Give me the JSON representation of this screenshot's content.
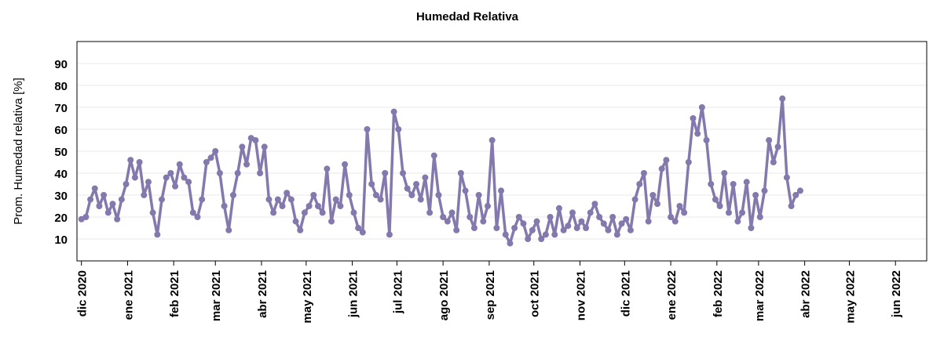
{
  "chart_data": {
    "type": "line",
    "title": "Humedad Relativa",
    "y_label": "Prom. Humedad relativa [%]",
    "x": [
      0,
      3,
      6,
      9,
      12,
      15,
      18,
      21,
      24,
      27,
      30,
      33,
      36,
      39,
      42,
      45,
      48,
      51,
      54,
      57,
      60,
      63,
      66,
      69,
      72,
      75,
      78,
      81,
      84,
      87,
      90,
      93,
      96,
      99,
      102,
      105,
      108,
      111,
      114,
      117,
      120,
      123,
      126,
      129,
      132,
      135,
      138,
      141,
      144,
      147,
      150,
      153,
      156,
      159,
      162,
      165,
      168,
      171,
      174,
      177,
      180,
      183,
      186,
      189,
      192,
      195,
      198,
      201,
      204,
      207,
      210,
      213,
      216,
      219,
      222,
      225,
      228,
      231,
      234,
      237,
      240,
      243,
      246,
      249,
      252,
      255,
      258,
      261,
      264,
      267,
      270,
      273,
      276,
      279,
      282,
      285,
      288,
      291,
      294,
      297,
      300,
      303,
      306,
      309,
      312,
      315,
      318,
      321,
      324,
      327,
      330,
      333,
      336,
      339,
      342,
      345,
      348,
      351,
      354,
      357,
      360,
      363,
      366,
      369,
      372,
      375,
      378,
      381,
      384,
      387,
      390,
      393,
      396,
      399,
      402,
      405,
      408,
      411,
      414,
      417,
      420,
      423,
      426,
      429,
      432,
      435,
      438,
      441,
      444,
      447,
      450,
      453,
      456,
      459,
      462,
      465,
      468,
      471,
      474,
      477,
      480,
      483
    ],
    "series": [
      {
        "color": "#8479ad",
        "values": [
          19,
          20,
          28,
          33,
          25,
          30,
          22,
          26,
          19,
          28,
          35,
          46,
          38,
          45,
          30,
          36,
          22,
          12,
          28,
          38,
          40,
          34,
          44,
          38,
          36,
          22,
          20,
          28,
          45,
          47,
          50,
          40,
          25,
          14,
          30,
          40,
          52,
          44,
          56,
          55,
          40,
          52,
          28,
          22,
          28,
          25,
          31,
          28,
          18,
          14,
          22,
          25,
          30,
          25,
          22,
          42,
          18,
          28,
          25,
          44,
          30,
          22,
          15,
          13,
          60,
          35,
          30,
          28,
          40,
          12,
          68,
          60,
          40,
          33,
          30,
          35,
          28,
          38,
          22,
          48,
          30,
          20,
          18,
          22,
          14,
          40,
          32,
          20,
          15,
          30,
          18,
          25,
          55,
          15,
          32,
          12,
          8,
          15,
          20,
          17,
          10,
          14,
          18,
          10,
          12,
          20,
          12,
          24,
          14,
          16,
          22,
          15,
          18,
          15,
          22,
          26,
          20,
          17,
          14,
          20,
          12,
          17,
          19,
          14,
          28,
          35,
          40,
          18,
          30,
          26,
          42,
          46,
          20,
          18,
          25,
          22,
          45,
          65,
          58,
          70,
          55,
          35,
          28,
          25,
          40,
          22,
          35,
          18,
          22,
          36,
          15,
          30,
          20,
          32,
          55,
          45,
          52,
          74,
          38,
          25,
          30,
          32
        ]
      }
    ],
    "xlim": [
      -3,
      568
    ],
    "xticks": [
      {
        "value": 0,
        "label": "dic 2020"
      },
      {
        "value": 31,
        "label": "ene 2021"
      },
      {
        "value": 62,
        "label": "feb 2021"
      },
      {
        "value": 90,
        "label": "mar 2021"
      },
      {
        "value": 121,
        "label": "abr 2021"
      },
      {
        "value": 151,
        "label": "may 2021"
      },
      {
        "value": 182,
        "label": "jun 2021"
      },
      {
        "value": 212,
        "label": "jul 2021"
      },
      {
        "value": 243,
        "label": "ago 2021"
      },
      {
        "value": 274,
        "label": "sep 2021"
      },
      {
        "value": 304,
        "label": "oct 2021"
      },
      {
        "value": 335,
        "label": "nov 2021"
      },
      {
        "value": 365,
        "label": "dic 2021"
      },
      {
        "value": 396,
        "label": "ene 2022"
      },
      {
        "value": 427,
        "label": "feb 2022"
      },
      {
        "value": 455,
        "label": "mar 2022"
      },
      {
        "value": 486,
        "label": "abr 2022"
      },
      {
        "value": 516,
        "label": "may 2022"
      },
      {
        "value": 547,
        "label": "jun 2022"
      }
    ],
    "ylim": [
      0,
      100
    ],
    "yticks": [
      10,
      20,
      30,
      40,
      50,
      60,
      70,
      80,
      90
    ],
    "grid": true
  }
}
